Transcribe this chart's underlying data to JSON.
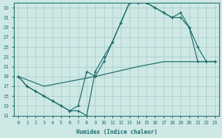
{
  "xlabel": "Humidex (Indice chaleur)",
  "bg_color": "#cde8e5",
  "grid_color": "#b0d0cc",
  "line_color": "#1a6b6b",
  "xlim": [
    -0.5,
    23.5
  ],
  "ylim": [
    11,
    34
  ],
  "xticks": [
    0,
    1,
    2,
    3,
    4,
    5,
    6,
    7,
    8,
    9,
    10,
    11,
    12,
    13,
    14,
    15,
    16,
    17,
    18,
    19,
    20,
    21,
    22,
    23
  ],
  "yticks": [
    11,
    13,
    15,
    17,
    19,
    21,
    23,
    25,
    27,
    29,
    31,
    33
  ],
  "line1_x": [
    0,
    1,
    2,
    3,
    4,
    5,
    6,
    7,
    8,
    9,
    10,
    11,
    12,
    13,
    14,
    15,
    16,
    17,
    18,
    19,
    20,
    21,
    22,
    23
  ],
  "line1_y": [
    19,
    17,
    16,
    15,
    14,
    13,
    12,
    12,
    11,
    20,
    23,
    26,
    30,
    34,
    34,
    34,
    33,
    32,
    31,
    31,
    29,
    25,
    22,
    22
  ],
  "line2_x": [
    0,
    1,
    2,
    3,
    4,
    5,
    6,
    7,
    8,
    9,
    10,
    11,
    12,
    13,
    14,
    15,
    16,
    17,
    18,
    19,
    20,
    21,
    22,
    23
  ],
  "line2_y": [
    19,
    17,
    16,
    15,
    14,
    13,
    12,
    13,
    20,
    19,
    22,
    26,
    30,
    34,
    34,
    34,
    33,
    32,
    31,
    32,
    29,
    22,
    22,
    22
  ],
  "line3_x": [
    0,
    3,
    9,
    14,
    17,
    19,
    21,
    23
  ],
  "line3_y": [
    19,
    17,
    19,
    21,
    22,
    22,
    22,
    22
  ]
}
